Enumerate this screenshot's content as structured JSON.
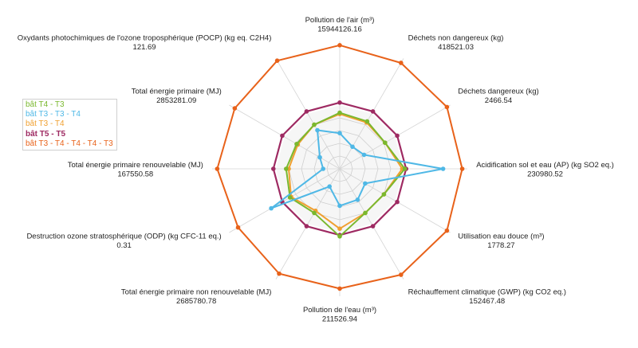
{
  "chart_data": {
    "type": "radar",
    "grid": true,
    "legend_position": "left",
    "axes": [
      {
        "label": "Pollution de l'air (m³)",
        "value": "15944126.16"
      },
      {
        "label": "Déchets non dangereux (kg)",
        "value": "418521.03"
      },
      {
        "label": "Déchets dangereux (kg)",
        "value": "2466.54"
      },
      {
        "label": "Acidification sol et eau (AP) (kg SO2 eq.)",
        "value": "230980.52"
      },
      {
        "label": "Utilisation eau douce (m³)",
        "value": "1778.27"
      },
      {
        "label": "Réchauffement climatique (GWP) (kg CO2 eq.)",
        "value": "152467.48"
      },
      {
        "label": "Pollution de l'eau (m³)",
        "value": "211526.94"
      },
      {
        "label": "Total énergie primaire non renouvelable (MJ)",
        "value": "2685780.78"
      },
      {
        "label": "Destruction ozone stratosphérique (ODP) (kg CFC-11 eq.)",
        "value": "0.31"
      },
      {
        "label": "Total énergie primaire renouvelable (MJ)",
        "value": "167550.58"
      },
      {
        "label": "Total énergie primaire (MJ)",
        "value": "2853281.09"
      },
      {
        "label": "Oxydants photochimiques de l'ozone troposphérique (POCP) (kg eq. C2H4)",
        "value": "121.69"
      }
    ],
    "rmax": 1.0,
    "series": [
      {
        "name": "bât T3 - T4 - T4 - T4 - T3",
        "color": "#e8621a",
        "bold": false,
        "values": [
          0.97,
          0.96,
          0.97,
          0.96,
          0.97,
          0.96,
          0.94,
          0.95,
          0.92,
          0.96,
          0.95,
          0.98
        ]
      },
      {
        "name": "bât T5 - T5",
        "color": "#9e2a62",
        "bold": true,
        "values": [
          0.52,
          0.52,
          0.52,
          0.52,
          0.52,
          0.52,
          0.52,
          0.52,
          0.52,
          0.52,
          0.52,
          0.52
        ]
      },
      {
        "name": "bât T3 - T4",
        "color": "#f0a030",
        "bold": false,
        "values": [
          0.43,
          0.42,
          0.41,
          0.49,
          0.4,
          0.4,
          0.47,
          0.38,
          0.44,
          0.4,
          0.38,
          0.4
        ]
      },
      {
        "name": "bât T4 - T3",
        "color": "#7ab82e",
        "bold": false,
        "values": [
          0.44,
          0.43,
          0.41,
          0.51,
          0.4,
          0.4,
          0.53,
          0.4,
          0.45,
          0.42,
          0.39,
          0.4
        ]
      },
      {
        "name": "bât T3 - T3 - T4",
        "color": "#4fb8e6",
        "bold": false,
        "values": [
          0.28,
          0.2,
          0.22,
          0.81,
          0.23,
          0.28,
          0.29,
          0.16,
          0.62,
          0.13,
          0.18,
          0.35
        ]
      }
    ]
  },
  "legend": [
    {
      "label": "bât T4 - T3",
      "color": "#7ab82e",
      "bold": false
    },
    {
      "label": "bât T3 - T3 - T4",
      "color": "#4fb8e6",
      "bold": false
    },
    {
      "label": "bât T3 - T4",
      "color": "#f0a030",
      "bold": false
    },
    {
      "label": "bât T5 - T5",
      "color": "#9e2a62",
      "bold": true
    },
    {
      "label": "bât T3 - T4 - T4 - T4 - T3",
      "color": "#e8621a",
      "bold": false
    }
  ]
}
